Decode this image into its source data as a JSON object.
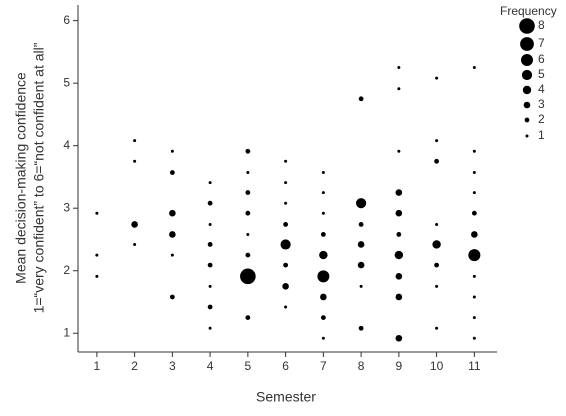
{
  "chart_data": {
    "type": "scatter",
    "xlabel": "Semester",
    "ylabel": [
      "Mean decision-making confidence",
      "1=“very confident” to 6=“not confident at all”"
    ],
    "legend_title": "Frequency",
    "size_legend": [
      8,
      7,
      6,
      5,
      4,
      3,
      2,
      1
    ],
    "color": "#000000",
    "xlim": [
      0.5,
      11.6
    ],
    "ylim": [
      0.7,
      6.25
    ],
    "xticks": [
      1,
      2,
      3,
      4,
      5,
      6,
      7,
      8,
      9,
      10,
      11
    ],
    "yticks": [
      1,
      2,
      3,
      4,
      5,
      6
    ],
    "x": [
      1,
      1,
      1,
      2,
      2,
      2,
      2,
      3,
      3,
      3,
      3,
      3,
      3,
      4,
      4,
      4,
      4,
      4,
      4,
      4,
      4,
      5,
      5,
      5,
      5,
      5,
      5,
      5,
      5,
      6,
      6,
      6,
      6,
      6,
      6,
      6,
      6,
      7,
      7,
      7,
      7,
      7,
      7,
      7,
      7,
      7,
      8,
      8,
      8,
      8,
      8,
      8,
      8,
      9,
      9,
      9,
      9,
      9,
      9,
      9,
      9,
      9,
      9,
      10,
      10,
      10,
      10,
      10,
      10,
      10,
      10,
      11,
      11,
      11,
      11,
      11,
      11,
      11,
      11,
      11,
      11,
      11
    ],
    "y": [
      2.92,
      2.25,
      1.91,
      4.08,
      3.75,
      2.74,
      2.42,
      3.91,
      3.57,
      2.92,
      2.58,
      2.25,
      1.58,
      3.41,
      3.08,
      2.74,
      2.42,
      2.09,
      1.75,
      1.42,
      1.08,
      3.91,
      3.57,
      3.25,
      2.92,
      2.58,
      2.25,
      1.91,
      1.25,
      3.75,
      3.41,
      3.08,
      2.74,
      2.42,
      2.09,
      1.75,
      1.42,
      3.57,
      3.25,
      2.92,
      2.58,
      2.25,
      1.91,
      1.58,
      1.25,
      0.92,
      4.75,
      3.08,
      2.74,
      2.42,
      2.09,
      1.75,
      1.08,
      5.25,
      4.91,
      3.91,
      3.25,
      2.92,
      2.58,
      2.25,
      1.91,
      1.58,
      0.92,
      5.08,
      4.08,
      3.75,
      2.74,
      2.42,
      2.09,
      1.75,
      1.08,
      5.25,
      3.91,
      3.57,
      3.25,
      2.92,
      2.58,
      2.25,
      1.91,
      1.58,
      1.25,
      0.92
    ],
    "sizes": [
      1,
      1,
      1,
      1,
      1,
      3,
      1,
      1,
      2,
      3,
      3,
      1,
      2,
      1,
      2,
      1,
      2,
      2,
      1,
      2,
      1,
      2,
      1,
      2,
      2,
      1,
      2,
      8,
      2,
      1,
      1,
      1,
      2,
      5,
      2,
      3,
      1,
      1,
      1,
      1,
      2,
      4,
      6,
      3,
      2,
      1,
      2,
      5,
      2,
      3,
      3,
      1,
      2,
      1,
      1,
      1,
      3,
      3,
      2,
      4,
      3,
      3,
      3,
      1,
      1,
      2,
      1,
      4,
      2,
      1,
      1,
      1,
      1,
      1,
      1,
      2,
      3,
      6,
      1,
      1,
      1,
      1
    ]
  }
}
